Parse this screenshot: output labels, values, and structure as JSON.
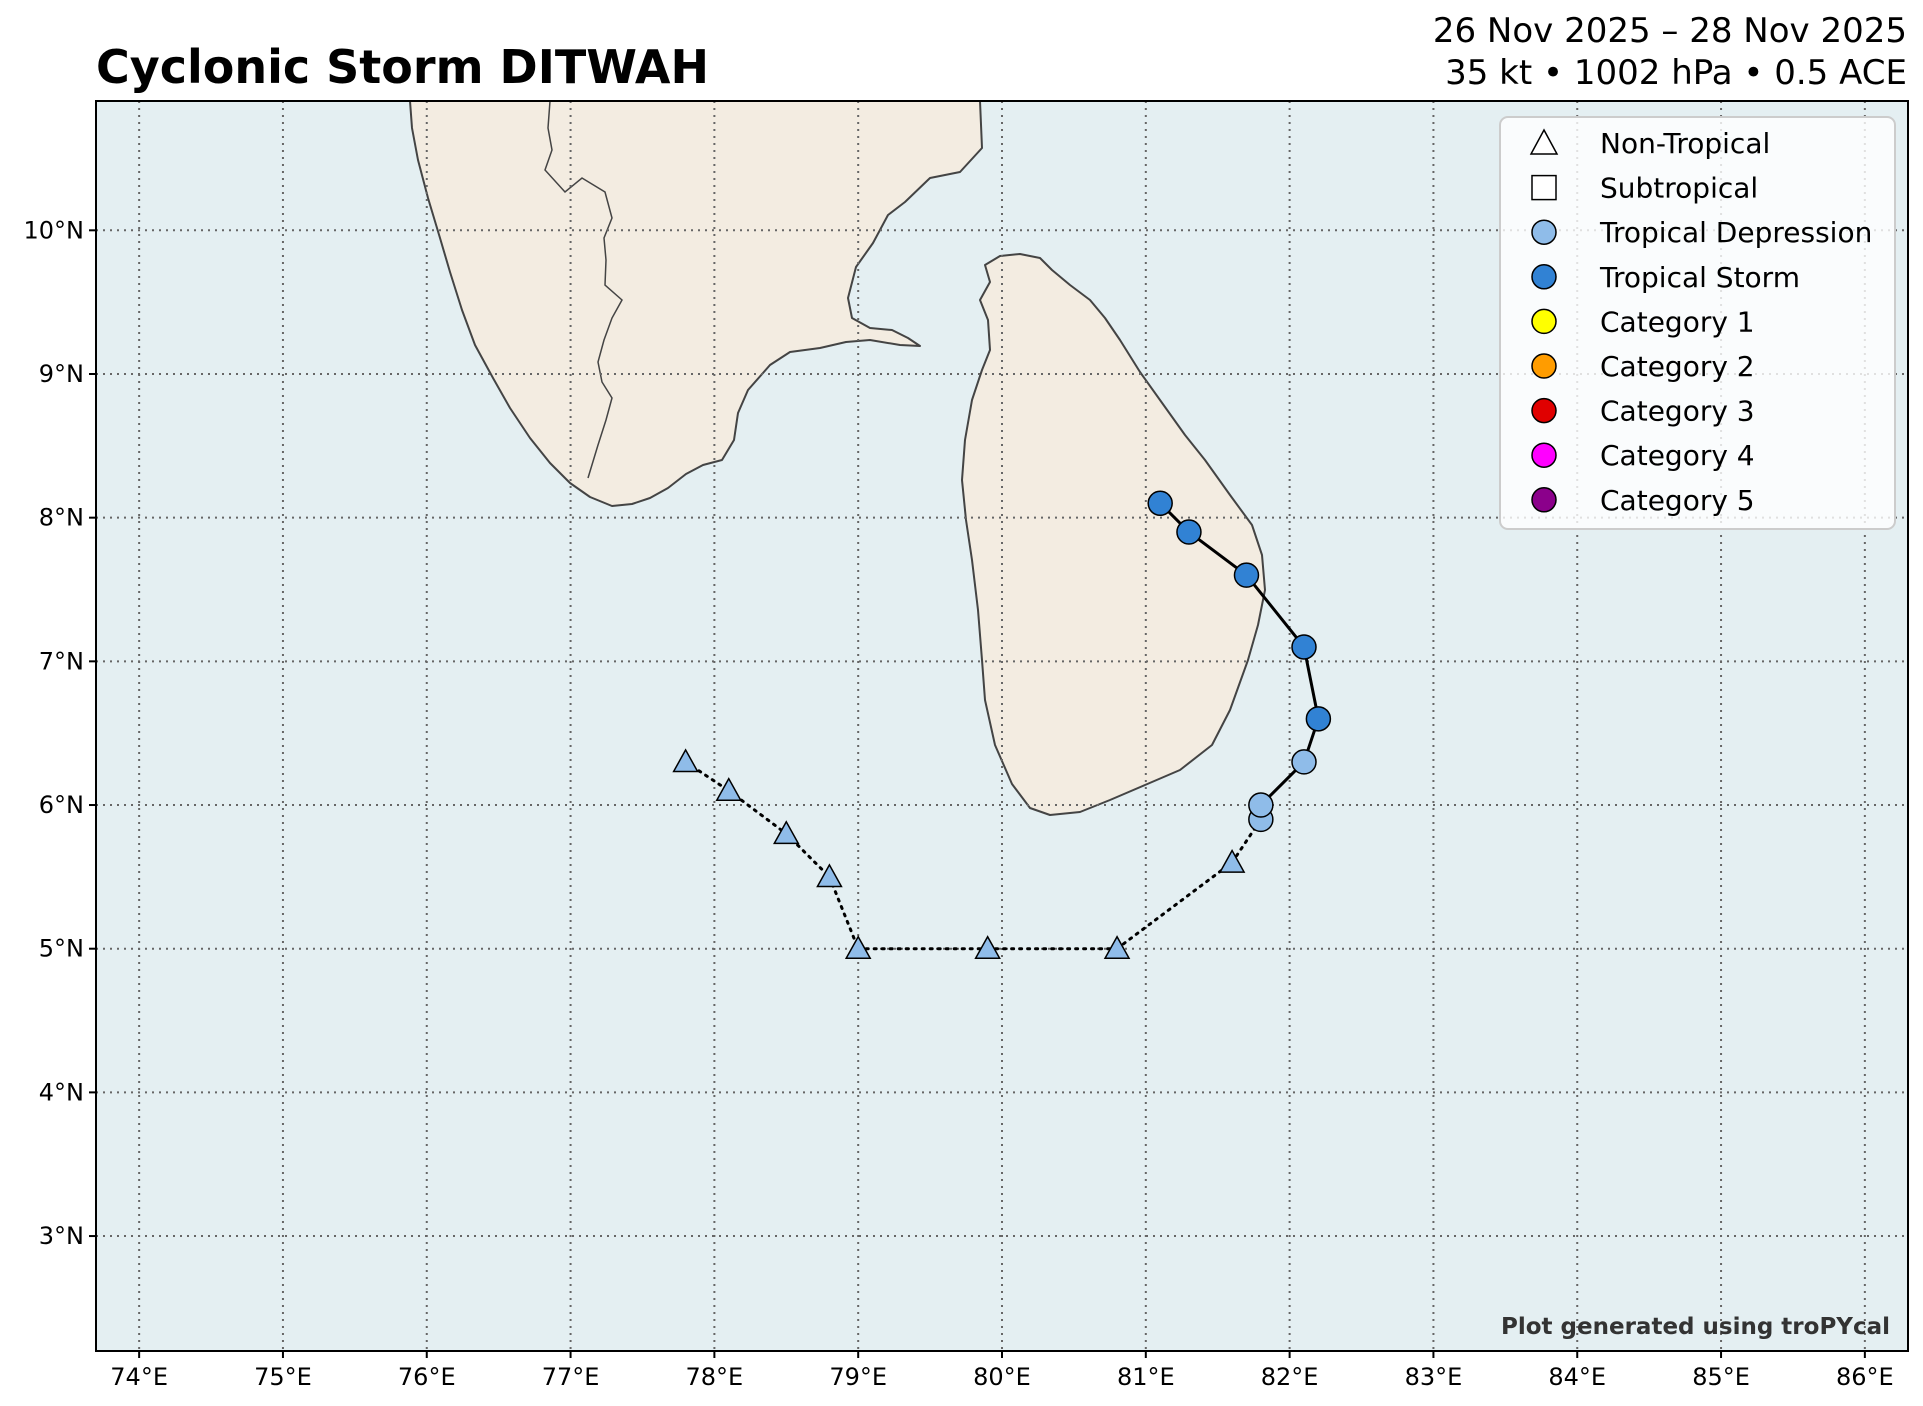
{
  "header": {
    "title": "Cyclonic Storm DITWAH",
    "date_range": "26 Nov 2025 – 28 Nov 2025",
    "stats": "35 kt • 1002 hPa • 0.5 ACE"
  },
  "map": {
    "lon_range": [
      73.7,
      86.3
    ],
    "lat_range": [
      2.2,
      10.9
    ],
    "lon_ticks": [
      "74°E",
      "75°E",
      "76°E",
      "77°E",
      "78°E",
      "79°E",
      "80°E",
      "81°E",
      "82°E",
      "83°E",
      "84°E",
      "85°E",
      "86°E"
    ],
    "lat_ticks": [
      "3°N",
      "4°N",
      "5°N",
      "6°N",
      "7°N",
      "8°N",
      "9°N",
      "10°N"
    ],
    "grid": true,
    "colors": {
      "ocean": "#e4eff2",
      "land": "#f3ece1",
      "coastline": "#444444",
      "gridline": "#666666"
    }
  },
  "legend": {
    "placement": "top-right",
    "items": [
      {
        "label": "Non-Tropical",
        "marker": "triangle",
        "color": "#ffffff"
      },
      {
        "label": "Subtropical",
        "marker": "square",
        "color": "#ffffff"
      },
      {
        "label": "Tropical Depression",
        "marker": "circle",
        "color": "#8fbce9"
      },
      {
        "label": "Tropical Storm",
        "marker": "circle",
        "color": "#3182d4"
      },
      {
        "label": "Category 1",
        "marker": "circle",
        "color": "#ffff00"
      },
      {
        "label": "Category 2",
        "marker": "circle",
        "color": "#ff9c00"
      },
      {
        "label": "Category 3",
        "marker": "circle",
        "color": "#e00000"
      },
      {
        "label": "Category 4",
        "marker": "circle",
        "color": "#ff00ff"
      },
      {
        "label": "Category 5",
        "marker": "circle",
        "color": "#8b008b"
      }
    ]
  },
  "track": [
    {
      "lon": 77.8,
      "lat": 6.3,
      "type": "non-tropical"
    },
    {
      "lon": 78.1,
      "lat": 6.1,
      "type": "non-tropical"
    },
    {
      "lon": 78.5,
      "lat": 5.8,
      "type": "non-tropical"
    },
    {
      "lon": 78.8,
      "lat": 5.5,
      "type": "non-tropical"
    },
    {
      "lon": 79.0,
      "lat": 5.0,
      "type": "non-tropical"
    },
    {
      "lon": 79.9,
      "lat": 5.0,
      "type": "non-tropical"
    },
    {
      "lon": 80.8,
      "lat": 5.0,
      "type": "non-tropical"
    },
    {
      "lon": 81.6,
      "lat": 5.6,
      "type": "non-tropical"
    },
    {
      "lon": 81.8,
      "lat": 5.9,
      "type": "tropical-depression"
    },
    {
      "lon": 81.8,
      "lat": 6.0,
      "type": "tropical-depression"
    },
    {
      "lon": 82.1,
      "lat": 6.3,
      "type": "tropical-depression"
    },
    {
      "lon": 82.2,
      "lat": 6.6,
      "type": "tropical-storm"
    },
    {
      "lon": 82.1,
      "lat": 7.1,
      "type": "tropical-storm"
    },
    {
      "lon": 81.7,
      "lat": 7.6,
      "type": "tropical-storm"
    },
    {
      "lon": 81.3,
      "lat": 7.9,
      "type": "tropical-storm"
    },
    {
      "lon": 81.1,
      "lat": 8.1,
      "type": "tropical-storm"
    }
  ],
  "credit": "Plot generated using troPYcal"
}
